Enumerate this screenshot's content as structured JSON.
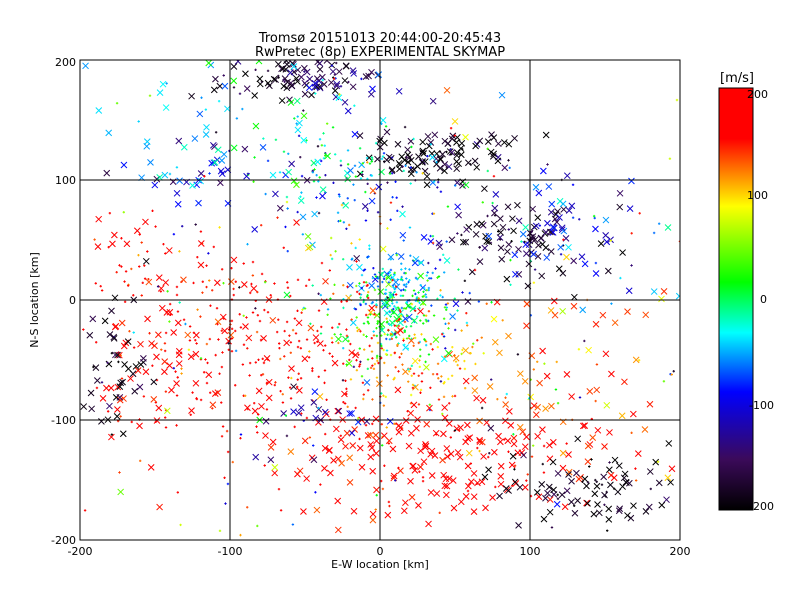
{
  "chart_data": {
    "type": "scatter",
    "title": "Tromsø 20151013 20:44:00-20:45:43",
    "subtitle": "RwPretec (8p) EXPERIMENTAL SKYMAP",
    "xlabel": "E-W location [km]",
    "ylabel": "N-S location [km]",
    "xlim": [
      -200,
      200
    ],
    "ylim": [
      -200,
      200
    ],
    "x_ticks": [
      "-200",
      "-100",
      "0",
      "100",
      "200"
    ],
    "y_ticks": [
      "-200",
      "-100",
      "0",
      "100",
      "200"
    ],
    "grid": true,
    "colorbar": {
      "unit": "[m/s]",
      "range": [
        -200,
        200
      ],
      "ticks": [
        "200",
        "100",
        "0",
        "-100",
        "-200"
      ],
      "colormap": [
        "#000000",
        "#3b0a5a",
        "#0000ff",
        "#00ffff",
        "#00ff00",
        "#ffff00",
        "#ff0000"
      ]
    },
    "markers": {
      "plus": "small",
      "x": "cross"
    },
    "clusters": [
      {
        "x": -60,
        "y": 185,
        "sx": 25,
        "sy": 12,
        "v": -180,
        "n": 70,
        "marker": "x"
      },
      {
        "x": -25,
        "y": 185,
        "sx": 20,
        "sy": 12,
        "v": -140,
        "n": 40,
        "marker": "x"
      },
      {
        "x": 40,
        "y": 120,
        "sx": 22,
        "sy": 12,
        "v": -190,
        "n": 110,
        "marker": "x"
      },
      {
        "x": 85,
        "y": 50,
        "sx": 25,
        "sy": 18,
        "v": -175,
        "n": 90,
        "marker": "x"
      },
      {
        "x": 120,
        "y": 55,
        "sx": 15,
        "sy": 10,
        "v": -130,
        "n": 30,
        "marker": "x"
      },
      {
        "x": 10,
        "y": 10,
        "sx": 18,
        "sy": 15,
        "v": -60,
        "n": 140,
        "marker": "plus"
      },
      {
        "x": 10,
        "y": -15,
        "sx": 20,
        "sy": 20,
        "v": 0,
        "n": 180,
        "marker": "plus"
      },
      {
        "x": 20,
        "y": -50,
        "sx": 30,
        "sy": 25,
        "v": 130,
        "n": 140,
        "marker": "plus"
      },
      {
        "x": -70,
        "y": -40,
        "sx": 55,
        "sy": 40,
        "v": 195,
        "n": 300,
        "marker": "plus"
      },
      {
        "x": -150,
        "y": -60,
        "sx": 30,
        "sy": 30,
        "v": 195,
        "n": 60,
        "marker": "x"
      },
      {
        "x": -180,
        "y": -55,
        "sx": 12,
        "sy": 30,
        "v": -190,
        "n": 45,
        "marker": "x"
      },
      {
        "x": 40,
        "y": -130,
        "sx": 55,
        "sy": 25,
        "v": 195,
        "n": 220,
        "marker": "x"
      },
      {
        "x": 145,
        "y": -160,
        "sx": 30,
        "sy": 18,
        "v": -190,
        "n": 90,
        "marker": "x"
      },
      {
        "x": -10,
        "y": 95,
        "sx": 30,
        "sy": 20,
        "v": -110,
        "n": 60,
        "marker": "plus"
      },
      {
        "x": -20,
        "y": 110,
        "sx": 35,
        "sy": 25,
        "v": -20,
        "n": 80,
        "marker": "plus"
      },
      {
        "x": -120,
        "y": 110,
        "sx": 20,
        "sy": 15,
        "v": -110,
        "n": 30,
        "marker": "x"
      },
      {
        "x": -110,
        "y": 150,
        "sx": 50,
        "sy": 35,
        "v": -30,
        "n": 60,
        "marker": "x"
      },
      {
        "x": 120,
        "y": 50,
        "sx": 50,
        "sy": 40,
        "v": -80,
        "n": 40,
        "marker": "x"
      },
      {
        "x": -150,
        "y": 20,
        "sx": 40,
        "sy": 30,
        "v": 195,
        "n": 70,
        "marker": "plus"
      },
      {
        "x": 130,
        "y": -60,
        "sx": 40,
        "sy": 40,
        "v": 150,
        "n": 60,
        "marker": "x"
      },
      {
        "x": -40,
        "y": -100,
        "sx": 25,
        "sy": 12,
        "v": -120,
        "n": 25,
        "marker": "x"
      },
      {
        "x": 0,
        "y": 0,
        "sx": 110,
        "sy": 110,
        "v": 0,
        "n": 250,
        "marker": "plus",
        "random_v": true
      }
    ]
  }
}
